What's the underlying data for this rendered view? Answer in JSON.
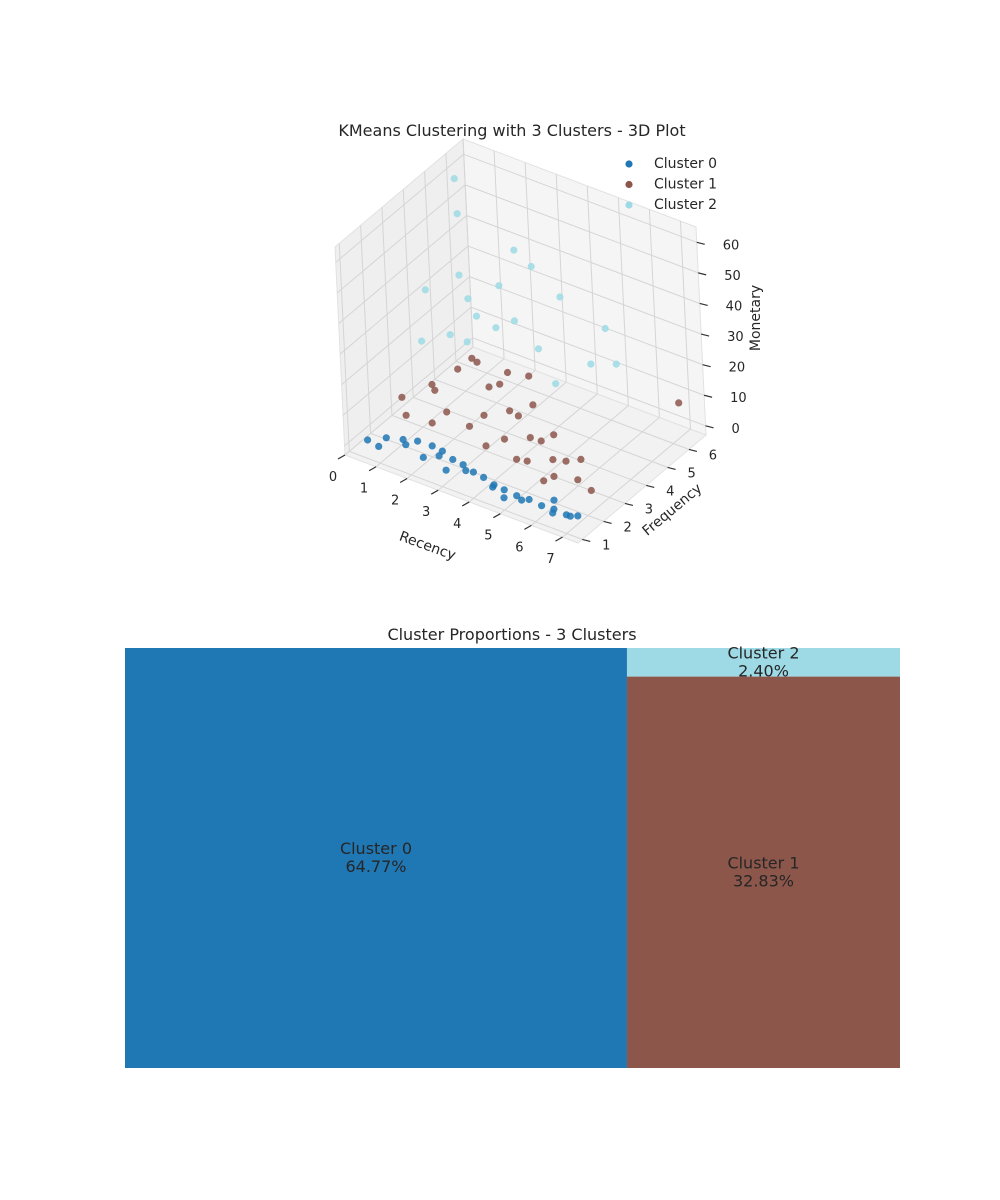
{
  "figure": {
    "scatter_title": "KMeans Clustering with 3 Clusters - 3D Plot",
    "treemap_title": "Cluster Proportions - 3 Clusters"
  },
  "chart_data": [
    {
      "type": "scatter",
      "subtype": "3d",
      "title": "KMeans Clustering with 3 Clusters - 3D Plot",
      "xlabel": "Recency",
      "ylabel": "Frequency",
      "zlabel": "Monetary",
      "x_ticks": [
        "0",
        "1",
        "2",
        "3",
        "4",
        "5",
        "6",
        "7"
      ],
      "y_ticks": [
        "1",
        "2",
        "3",
        "4",
        "5",
        "6"
      ],
      "z_ticks": [
        "0",
        "10",
        "20",
        "30",
        "40",
        "50",
        "60"
      ],
      "xlim": [
        0,
        7.5
      ],
      "ylim": [
        0.8,
        6.8
      ],
      "zlim": [
        -3,
        65
      ],
      "legend": {
        "position": "top-right",
        "entries": [
          "Cluster 0",
          "Cluster 1",
          "Cluster 2"
        ]
      },
      "grid": true,
      "series": [
        {
          "name": "Cluster 0",
          "color": "#1f77b4",
          "points": [
            [
              0.4,
              1.3,
              0.5
            ],
            [
              0.8,
              1.6,
              1.0
            ],
            [
              1.2,
              1.8,
              0.8
            ],
            [
              1.6,
              1.9,
              1.2
            ],
            [
              2.0,
              2.0,
              0.6
            ],
            [
              2.4,
              1.9,
              1.0
            ],
            [
              2.8,
              1.8,
              0.4
            ],
            [
              3.2,
              1.7,
              0.8
            ],
            [
              3.6,
              1.6,
              0.5
            ],
            [
              4.0,
              1.5,
              0.9
            ],
            [
              4.4,
              1.4,
              0.6
            ],
            [
              4.8,
              1.3,
              1.1
            ],
            [
              5.2,
              1.3,
              0.7
            ],
            [
              5.6,
              1.3,
              1.0
            ],
            [
              6.0,
              1.3,
              0.5
            ],
            [
              6.4,
              1.3,
              0.9
            ],
            [
              6.8,
              1.3,
              0.6
            ],
            [
              7.1,
              1.4,
              0.8
            ],
            [
              1.5,
              1.5,
              2.0
            ],
            [
              2.5,
              1.6,
              1.6
            ],
            [
              3.5,
              1.4,
              1.8
            ],
            [
              4.5,
              1.2,
              1.4
            ],
            [
              5.5,
              1.1,
              1.6
            ],
            [
              6.5,
              1.1,
              1.2
            ],
            [
              7.0,
              1.2,
              1.5
            ],
            [
              0.9,
              1.1,
              1.5
            ],
            [
              3.0,
              1.2,
              1.2
            ],
            [
              5.0,
              1.0,
              1.0
            ],
            [
              6.2,
              1.6,
              1.3
            ],
            [
              2.2,
              1.3,
              1.7
            ]
          ]
        },
        {
          "name": "Cluster 1",
          "color": "#8c564b",
          "points": [
            [
              0.5,
              2.8,
              6
            ],
            [
              1.0,
              3.5,
              8
            ],
            [
              1.5,
              4.0,
              12
            ],
            [
              2.0,
              4.2,
              15
            ],
            [
              2.5,
              4.0,
              10
            ],
            [
              3.0,
              3.8,
              14
            ],
            [
              3.5,
              3.5,
              9
            ],
            [
              4.0,
              3.2,
              11
            ],
            [
              4.5,
              3.0,
              7
            ],
            [
              5.0,
              2.8,
              9
            ],
            [
              5.5,
              2.6,
              6
            ],
            [
              6.0,
              2.5,
              8
            ],
            [
              6.5,
              2.3,
              5
            ],
            [
              7.0,
              2.2,
              4
            ],
            [
              1.8,
              3.0,
              5
            ],
            [
              2.8,
              3.3,
              6
            ],
            [
              3.8,
              2.8,
              5
            ],
            [
              4.8,
              2.4,
              4
            ],
            [
              5.8,
              2.2,
              4
            ],
            [
              2.2,
              3.7,
              20
            ],
            [
              3.2,
              3.9,
              18
            ],
            [
              1.3,
              3.2,
              9
            ],
            [
              4.2,
              3.6,
              13
            ],
            [
              5.2,
              3.1,
              10
            ],
            [
              6.2,
              2.9,
              7
            ],
            [
              0.9,
              2.4,
              4
            ],
            [
              6.8,
              6.6,
              6
            ],
            [
              3.6,
              4.3,
              16
            ],
            [
              2.6,
              2.9,
              4
            ],
            [
              4.6,
              2.2,
              5
            ],
            [
              5.6,
              2.0,
              3
            ],
            [
              1.6,
              2.6,
              3
            ],
            [
              3.4,
              2.5,
              3
            ]
          ]
        },
        {
          "name": "Cluster 2",
          "color": "#9edae5",
          "points": [
            [
              0.2,
              4.5,
              30
            ],
            [
              0.6,
              5.5,
              62
            ],
            [
              1.0,
              5.0,
              55
            ],
            [
              1.4,
              4.4,
              40
            ],
            [
              1.8,
              4.2,
              35
            ],
            [
              2.2,
              4.0,
              32
            ],
            [
              2.6,
              4.3,
              28
            ],
            [
              3.0,
              4.6,
              30
            ],
            [
              3.2,
              5.2,
              45
            ],
            [
              2.0,
              3.8,
              24
            ],
            [
              3.6,
              4.8,
              22
            ],
            [
              4.4,
              4.4,
              16
            ],
            [
              5.0,
              5.2,
              20
            ],
            [
              5.4,
              5.8,
              18
            ],
            [
              2.8,
              5.0,
              50
            ],
            [
              1.6,
              3.6,
              26
            ],
            [
              0.8,
              3.4,
              22
            ],
            [
              3.8,
              5.6,
              35
            ],
            [
              2.4,
              4.8,
              38
            ],
            [
              4.8,
              6.2,
              25
            ]
          ]
        }
      ]
    },
    {
      "type": "treemap",
      "title": "Cluster Proportions - 3 Clusters",
      "items": [
        {
          "name": "Cluster 0",
          "label": "Cluster 0",
          "value_label": "64.77%",
          "value": 64.77,
          "color": "#1f77b4"
        },
        {
          "name": "Cluster 1",
          "label": "Cluster 1",
          "value_label": "32.83%",
          "value": 32.83,
          "color": "#8c564b"
        },
        {
          "name": "Cluster 2",
          "label": "Cluster 2",
          "value_label": "2.40%",
          "value": 2.4,
          "color": "#9edae5"
        }
      ]
    }
  ]
}
